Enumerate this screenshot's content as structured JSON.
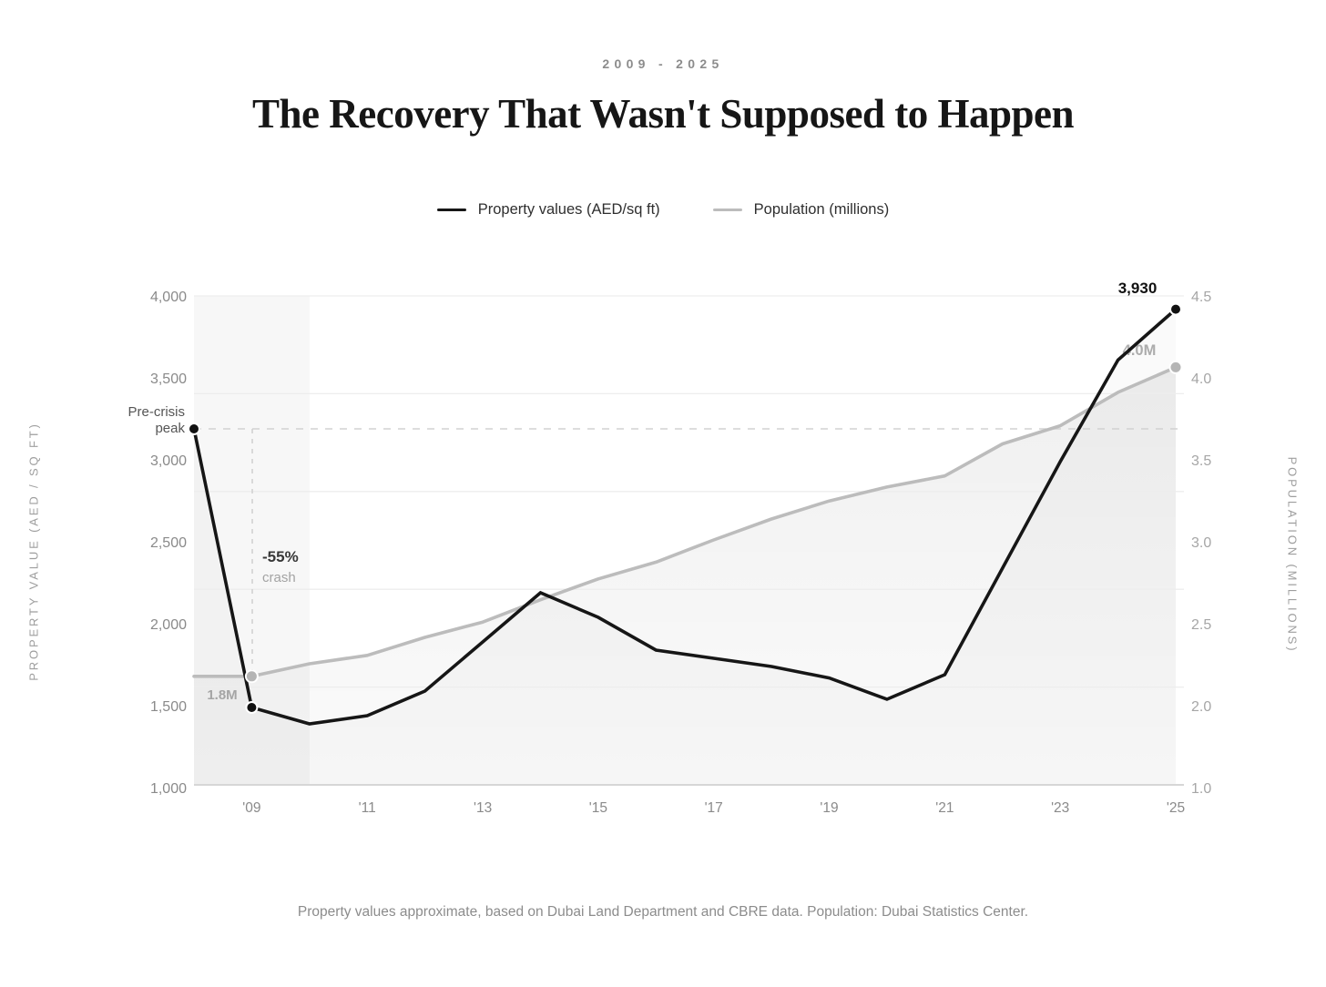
{
  "header": {
    "eyebrow": "2009 - 2025",
    "title": "The Recovery That Wasn't Supposed to Happen"
  },
  "legend": {
    "items": [
      {
        "label": "Property values (AED/sq ft)",
        "color": "#161616"
      },
      {
        "label": "Population (millions)",
        "color": "#bcbcbc"
      }
    ]
  },
  "left_axis": {
    "title": "PROPERTY VALUE (AED / SQ FT)",
    "ticks": [
      "4,000",
      "3,500",
      "3,000",
      "2,500",
      "2,000",
      "1,500",
      "1,000"
    ]
  },
  "right_axis": {
    "title": "POPULATION (MILLIONS)",
    "ticks": [
      "4.5",
      "4.0",
      "3.5",
      "3.0",
      "2.5",
      "2.0",
      "1.0"
    ]
  },
  "x_axis": {
    "years": [
      2009,
      2011,
      2013,
      2015,
      2017,
      2019,
      2021,
      2023,
      2025
    ],
    "labels": [
      "'09",
      "'11",
      "'13",
      "'15",
      "'17",
      "'19",
      "'21",
      "'23",
      "'25"
    ]
  },
  "annotations": {
    "pre_crisis_line1": "Pre-crisis",
    "pre_crisis_line2": "peak",
    "crash_pct": "-55%",
    "crash_word": "crash",
    "pop_start": "1.8M",
    "pop_end": "4.0M",
    "prop_end": "3,930"
  },
  "footer": {
    "note": "Property values approximate, based on Dubai Land Department and CBRE data. Population: Dubai Statistics Center."
  },
  "chart_data": {
    "type": "line",
    "title": "The Recovery That Wasn't Supposed to Happen",
    "subtitle": "2009 - 2025",
    "x": [
      2008,
      2009,
      2010,
      2011,
      2012,
      2013,
      2014,
      2015,
      2016,
      2017,
      2018,
      2019,
      2020,
      2021,
      2022,
      2023,
      2024,
      2025
    ],
    "series": [
      {
        "name": "Property values (AED/sq ft)",
        "axis": "left",
        "color": "#161616",
        "values": [
          3200,
          1500,
          1400,
          1450,
          1600,
          1900,
          2200,
          2050,
          1850,
          1800,
          1750,
          1680,
          1550,
          1700,
          2350,
          3000,
          3620,
          3930
        ]
      },
      {
        "name": "Population (millions)",
        "axis": "right",
        "color": "#bcbcbc",
        "values": [
          1.78,
          1.78,
          1.87,
          1.93,
          2.06,
          2.17,
          2.33,
          2.48,
          2.6,
          2.76,
          2.91,
          3.04,
          3.14,
          3.22,
          3.45,
          3.58,
          3.82,
          4.0
        ]
      }
    ],
    "y_left": {
      "label": "PROPERTY VALUE (AED / SQ FT)",
      "range": [
        1000,
        4000
      ]
    },
    "y_right": {
      "label": "POPULATION (MILLIONS)",
      "range": [
        1.0,
        4.5
      ]
    },
    "grid": "horizontal",
    "legend_position": "top",
    "highlight_band_years": [
      2008,
      2010
    ],
    "markers": {
      "property_years": [
        2008,
        2009,
        2025
      ],
      "population_years": [
        2009,
        2025
      ]
    },
    "callouts": [
      {
        "text": "Pre-crisis peak",
        "year": 2008,
        "value": 3200
      },
      {
        "text": "-55% crash",
        "year": 2009
      },
      {
        "text": "1.8M",
        "year": 2009,
        "value": 1.8
      },
      {
        "text": "3,930",
        "year": 2025,
        "value": 3930
      },
      {
        "text": "4.0M",
        "year": 2025,
        "value": 4.0
      }
    ]
  }
}
